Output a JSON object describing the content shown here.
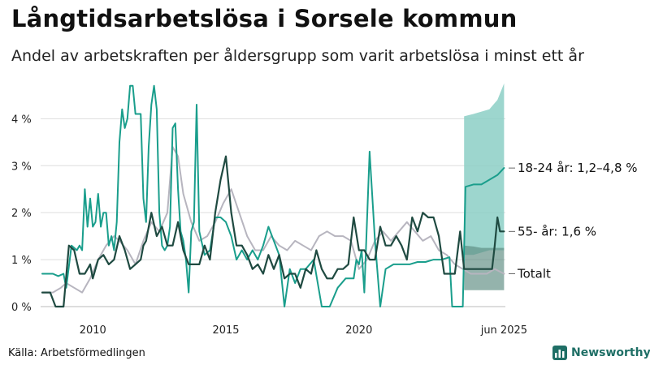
{
  "title": "Långtidsarbetslösa i Sorsele kommun",
  "subtitle": "Andel av arbetskraften per åldersgrupp som varit arbetslösa i minst ett år",
  "source": "Källa: Arbetsförmedlingen",
  "brand": "Newsworthy",
  "colors": {
    "youth": "#1a9e8c",
    "youth_band": "#8ccfc5",
    "older": "#1f4a41",
    "older_band": "#5a8b80",
    "total": "#b7b5bf",
    "grid": "#dddddd"
  },
  "chart_data": {
    "type": "line",
    "x_unit": "year",
    "xlim": [
      2008.1,
      2025.5
    ],
    "ylim": [
      0,
      4.8
    ],
    "yticks": [
      0,
      1,
      2,
      3,
      4
    ],
    "ytick_labels": [
      "0 %",
      "1 %",
      "2 %",
      "3 %",
      "4 %"
    ],
    "xticks": [
      2010,
      2015,
      2020,
      2025.45
    ],
    "xtick_labels": [
      "2010",
      "2015",
      "2020",
      "jun 2025"
    ],
    "series": [
      {
        "key": "youth",
        "end_label": "18-24 år: 1,2–4,8 %",
        "x": [
          2008.1,
          2008.3,
          2008.5,
          2008.7,
          2008.9,
          2009.0,
          2009.2,
          2009.4,
          2009.5,
          2009.6,
          2009.7,
          2009.8,
          2009.9,
          2010.0,
          2010.1,
          2010.2,
          2010.3,
          2010.4,
          2010.5,
          2010.6,
          2010.7,
          2010.8,
          2010.9,
          2011.0,
          2011.1,
          2011.2,
          2011.3,
          2011.4,
          2011.5,
          2011.6,
          2011.7,
          2011.8,
          2011.9,
          2012.0,
          2012.1,
          2012.2,
          2012.3,
          2012.4,
          2012.5,
          2012.6,
          2012.7,
          2012.8,
          2012.9,
          2013.0,
          2013.1,
          2013.2,
          2013.3,
          2013.4,
          2013.5,
          2013.6,
          2013.7,
          2013.8,
          2013.9,
          2014.0,
          2014.2,
          2014.4,
          2014.6,
          2014.8,
          2015.0,
          2015.2,
          2015.4,
          2015.6,
          2015.8,
          2016.0,
          2016.2,
          2016.4,
          2016.6,
          2016.8,
          2017.0,
          2017.2,
          2017.4,
          2017.6,
          2017.8,
          2018.0,
          2018.3,
          2018.6,
          2018.9,
          2019.2,
          2019.5,
          2019.8,
          2019.9,
          2020.0,
          2020.1,
          2020.2,
          2020.4,
          2020.6,
          2020.8,
          2021.0,
          2021.3,
          2021.6,
          2021.9,
          2022.2,
          2022.5,
          2022.8,
          2023.1,
          2023.4,
          2023.5,
          2023.9,
          2024.0,
          2024.3,
          2024.6,
          2024.9,
          2025.2,
          2025.45
        ],
        "y": [
          0.7,
          0.7,
          0.7,
          0.65,
          0.7,
          0.4,
          1.3,
          1.2,
          1.3,
          1.2,
          2.5,
          1.7,
          2.3,
          1.7,
          1.8,
          2.4,
          1.7,
          2.0,
          2.0,
          1.3,
          1.5,
          1.2,
          1.8,
          3.5,
          4.2,
          3.8,
          4.0,
          4.7,
          4.7,
          4.1,
          4.1,
          4.1,
          2.3,
          1.8,
          3.4,
          4.3,
          4.7,
          4.2,
          2.0,
          1.3,
          1.2,
          1.3,
          1.7,
          3.8,
          3.9,
          2.5,
          1.6,
          1.4,
          1.0,
          0.3,
          1.6,
          1.8,
          4.3,
          1.6,
          1.1,
          1.2,
          1.9,
          1.9,
          1.8,
          1.5,
          1.0,
          1.2,
          1.0,
          1.2,
          1.0,
          1.3,
          1.7,
          1.4,
          1.1,
          0.0,
          0.8,
          0.5,
          0.8,
          0.8,
          1.0,
          0.0,
          0.0,
          0.4,
          0.6,
          0.6,
          1.0,
          0.9,
          1.2,
          0.3,
          3.3,
          1.4,
          0.0,
          0.8,
          0.9,
          0.9,
          0.9,
          0.95,
          0.95,
          1.0,
          1.0,
          1.05,
          0.0,
          0.0,
          2.55,
          2.6,
          2.6,
          2.7,
          2.8,
          2.95
        ],
        "band_x": [
          2023.95,
          2024.3,
          2024.6,
          2024.9,
          2025.2,
          2025.45
        ],
        "band_low": [
          1.1,
          1.1,
          1.15,
          1.2,
          1.2,
          1.2
        ],
        "band_high": [
          4.05,
          4.1,
          4.15,
          4.2,
          4.4,
          4.75
        ]
      },
      {
        "key": "older",
        "end_label": "55- år: 1,6 %",
        "x": [
          2008.1,
          2008.4,
          2008.6,
          2008.9,
          2009.1,
          2009.3,
          2009.5,
          2009.7,
          2009.9,
          2010.0,
          2010.2,
          2010.4,
          2010.6,
          2010.8,
          2011.0,
          2011.2,
          2011.4,
          2011.6,
          2011.8,
          2011.9,
          2012.0,
          2012.2,
          2012.4,
          2012.6,
          2012.8,
          2013.0,
          2013.2,
          2013.4,
          2013.6,
          2013.8,
          2014.0,
          2014.2,
          2014.4,
          2014.6,
          2014.8,
          2015.0,
          2015.2,
          2015.4,
          2015.6,
          2015.8,
          2016.0,
          2016.2,
          2016.4,
          2016.6,
          2016.8,
          2017.0,
          2017.2,
          2017.4,
          2017.6,
          2017.8,
          2018.0,
          2018.2,
          2018.4,
          2018.6,
          2018.8,
          2019.0,
          2019.2,
          2019.4,
          2019.6,
          2019.8,
          2020.0,
          2020.2,
          2020.4,
          2020.6,
          2020.8,
          2021.0,
          2021.2,
          2021.4,
          2021.6,
          2021.8,
          2022.0,
          2022.2,
          2022.4,
          2022.6,
          2022.8,
          2023.0,
          2023.2,
          2023.4,
          2023.6,
          2023.8,
          2023.95,
          2024.3,
          2024.6,
          2024.9,
          2025.0,
          2025.1,
          2025.2,
          2025.3,
          2025.45
        ],
        "y": [
          0.3,
          0.3,
          0.0,
          0.0,
          1.3,
          1.2,
          0.7,
          0.7,
          0.9,
          0.6,
          1.0,
          1.1,
          0.9,
          1.0,
          1.5,
          1.2,
          0.8,
          0.9,
          1.0,
          1.3,
          1.4,
          2.0,
          1.5,
          1.7,
          1.3,
          1.3,
          1.8,
          1.2,
          0.9,
          0.9,
          0.9,
          1.3,
          1.0,
          2.0,
          2.7,
          3.2,
          2.0,
          1.3,
          1.3,
          1.1,
          0.8,
          0.9,
          0.7,
          1.1,
          0.8,
          1.1,
          0.6,
          0.7,
          0.7,
          0.4,
          0.8,
          0.7,
          1.2,
          0.8,
          0.6,
          0.6,
          0.8,
          0.8,
          0.9,
          1.9,
          1.2,
          1.2,
          1.0,
          1.0,
          1.7,
          1.3,
          1.3,
          1.5,
          1.3,
          1.0,
          1.9,
          1.6,
          2.0,
          1.9,
          1.9,
          1.5,
          0.7,
          0.7,
          0.7,
          1.6,
          0.8,
          0.8,
          0.8,
          0.8,
          0.8,
          1.3,
          1.9,
          1.6,
          1.6
        ],
        "band_x": [
          2023.95,
          2024.3,
          2024.6,
          2024.9,
          2025.2,
          2025.45
        ],
        "band_low": [
          0.35,
          0.35,
          0.35,
          0.35,
          0.35,
          0.35
        ],
        "band_high": [
          1.3,
          1.28,
          1.25,
          1.25,
          1.25,
          1.25
        ]
      },
      {
        "key": "total",
        "end_label": "Totalt",
        "x": [
          2008.1,
          2008.5,
          2008.8,
          2009.0,
          2009.3,
          2009.6,
          2009.9,
          2010.2,
          2010.5,
          2010.8,
          2011.0,
          2011.3,
          2011.6,
          2011.9,
          2012.2,
          2012.5,
          2012.8,
          2013.0,
          2013.2,
          2013.4,
          2013.7,
          2014.0,
          2014.3,
          2014.6,
          2014.9,
          2015.2,
          2015.5,
          2015.8,
          2016.1,
          2016.4,
          2016.7,
          2017.0,
          2017.3,
          2017.6,
          2017.9,
          2018.2,
          2018.5,
          2018.8,
          2019.1,
          2019.4,
          2019.7,
          2020.0,
          2020.3,
          2020.6,
          2020.9,
          2021.2,
          2021.5,
          2021.8,
          2022.1,
          2022.4,
          2022.7,
          2023.0,
          2023.3,
          2023.6,
          2023.9,
          2024.2,
          2024.5,
          2024.8,
          2025.1,
          2025.45
        ],
        "y": [
          0.3,
          0.3,
          0.4,
          0.5,
          0.4,
          0.3,
          0.6,
          1.0,
          1.3,
          1.5,
          1.4,
          1.2,
          0.9,
          1.4,
          1.8,
          1.6,
          2.0,
          3.4,
          3.2,
          2.4,
          1.8,
          1.4,
          1.5,
          1.8,
          2.2,
          2.5,
          2.0,
          1.5,
          1.2,
          1.2,
          1.5,
          1.3,
          1.2,
          1.4,
          1.3,
          1.2,
          1.5,
          1.6,
          1.5,
          1.5,
          1.4,
          0.8,
          1.0,
          1.4,
          1.6,
          1.4,
          1.6,
          1.8,
          1.6,
          1.4,
          1.5,
          1.2,
          1.1,
          0.9,
          0.8,
          0.7,
          0.7,
          0.7,
          0.8,
          0.7
        ]
      }
    ]
  }
}
